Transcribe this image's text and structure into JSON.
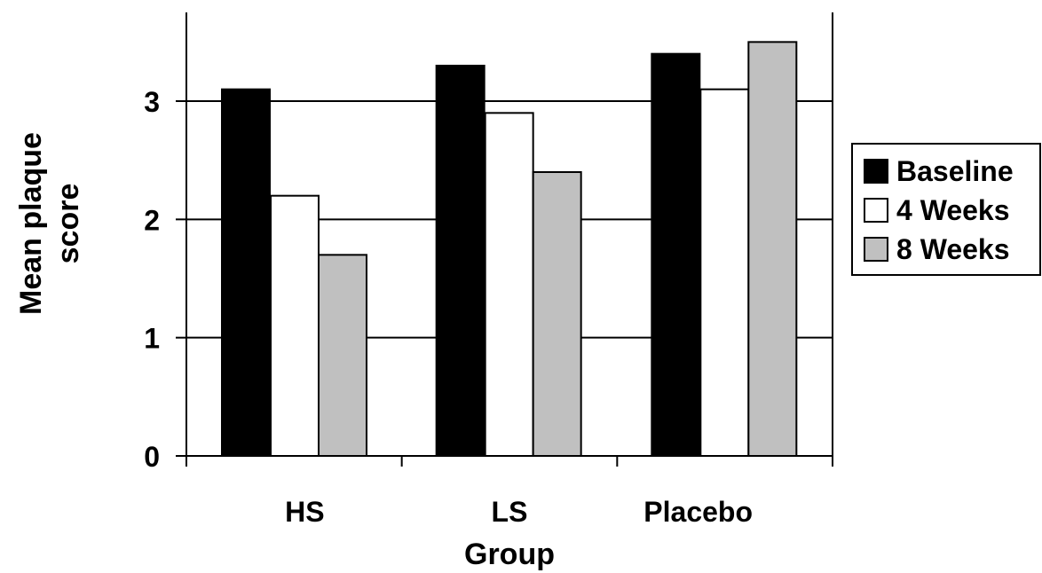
{
  "chart_data": {
    "type": "bar",
    "categories": [
      "HS",
      "LS",
      "Placebo"
    ],
    "series": [
      {
        "name": "Baseline",
        "values": [
          3.1,
          3.3,
          3.4
        ],
        "color": "#000000"
      },
      {
        "name": "4 Weeks",
        "values": [
          2.2,
          2.9,
          3.1
        ],
        "color": "#ffffff"
      },
      {
        "name": "8 Weeks",
        "values": [
          1.7,
          2.4,
          3.5
        ],
        "color": "#c0c0c0"
      }
    ],
    "xlabel": "Group",
    "ylabel_lines": [
      "Mean plaque",
      "score"
    ],
    "ylim": [
      0,
      3.5
    ],
    "yticks": [
      0,
      1,
      2,
      3
    ],
    "grid": true,
    "legend_position": "right"
  }
}
